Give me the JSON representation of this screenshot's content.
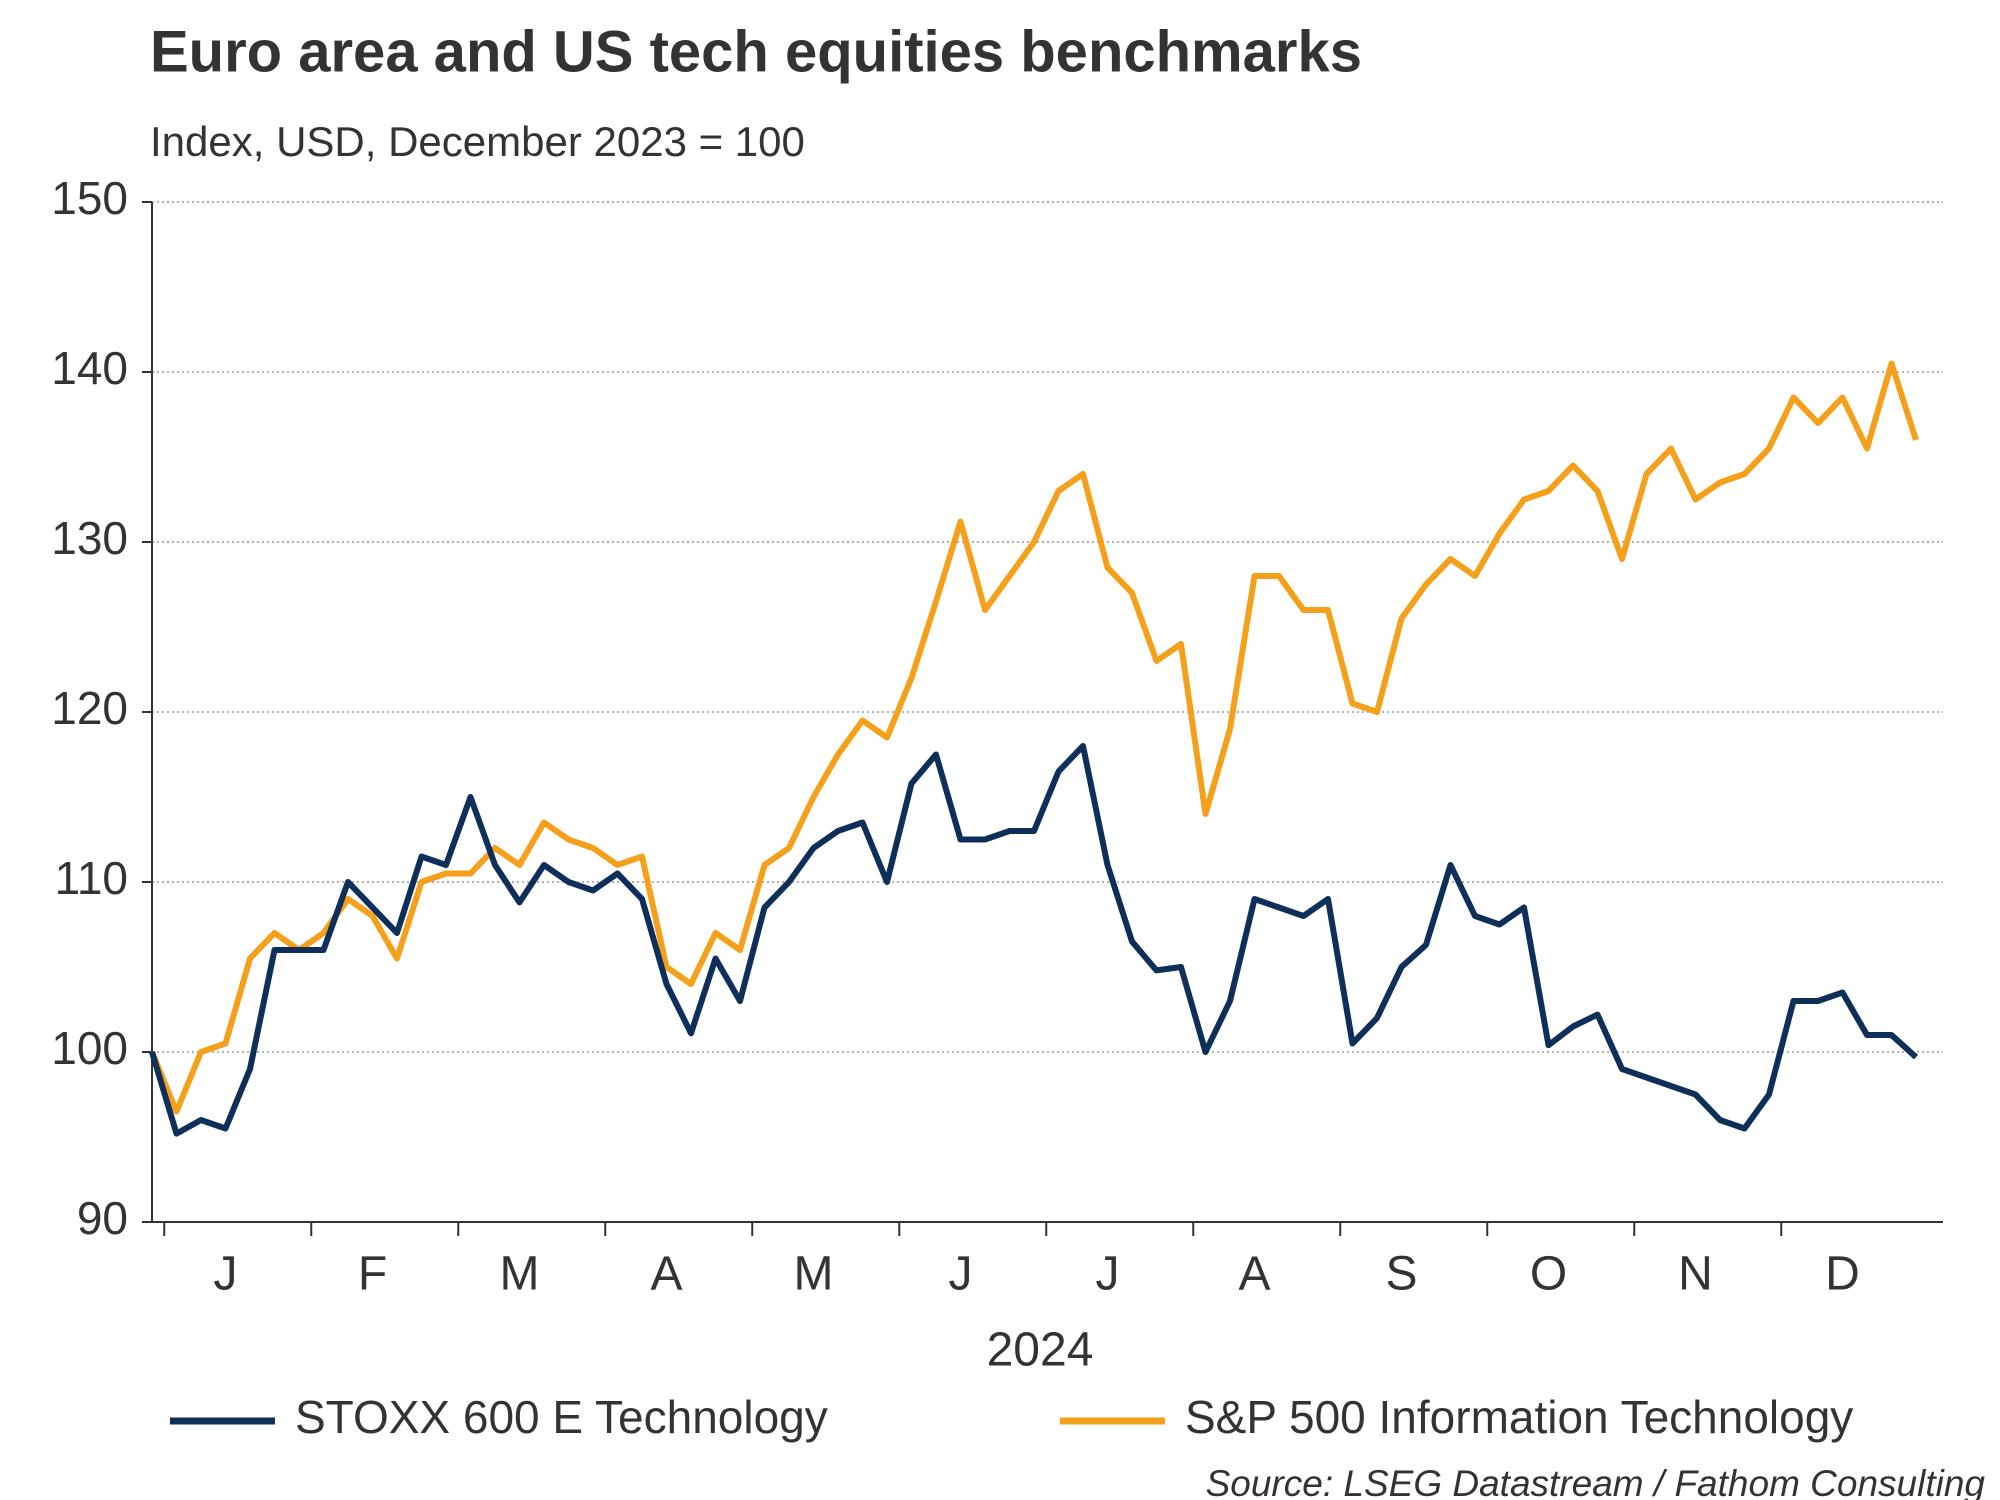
{
  "chart_data": {
    "type": "line",
    "title": "Euro area and US tech equities benchmarks",
    "subtitle": "Index, USD, December 2023 = 100",
    "x_label": "2024",
    "source": "Source: LSEG Datastream / Fathom Consulting",
    "categories": [
      null,
      null,
      null,
      "J",
      null,
      null,
      null,
      null,
      null,
      "F",
      null,
      null,
      null,
      null,
      null,
      "M",
      null,
      null,
      null,
      null,
      null,
      "A",
      null,
      null,
      null,
      null,
      null,
      "M",
      null,
      null,
      null,
      null,
      null,
      "J",
      null,
      null,
      null,
      null,
      null,
      "J",
      null,
      null,
      null,
      null,
      null,
      "A",
      null,
      null,
      null,
      null,
      null,
      "S",
      null,
      null,
      null,
      null,
      null,
      "O",
      null,
      null,
      null,
      null,
      null,
      "N",
      null,
      null,
      null,
      null,
      null,
      "D",
      null,
      null,
      null
    ],
    "series": [
      {
        "name": "STOXX 600 E Technology",
        "color": "#0d2f5a",
        "values": [
          100,
          95.2,
          96,
          95.5,
          99,
          106,
          106,
          106,
          110,
          108.5,
          107,
          111.5,
          111,
          115,
          111,
          108.8,
          111,
          110,
          109.5,
          110.5,
          109,
          104,
          101.1,
          105.5,
          103,
          108.5,
          110,
          112,
          113,
          113.5,
          110,
          115.8,
          117.5,
          112.5,
          112.5,
          113,
          113,
          116.5,
          118,
          111,
          106.5,
          104.8,
          105,
          100,
          103,
          109,
          108.5,
          108,
          109,
          100.5,
          102,
          105,
          106.3,
          111,
          108,
          107.5,
          108.5,
          100.4,
          101.5,
          102.2,
          99,
          98.5,
          98,
          97.5,
          96,
          95.5,
          97.5,
          103,
          103,
          103.5,
          101,
          101,
          99.7
        ]
      },
      {
        "name": "S&P 500 Information Technology",
        "color": "#f5a01a",
        "values": [
          100,
          96.5,
          100,
          100.5,
          105.5,
          107,
          106,
          107,
          109,
          108,
          105.5,
          110,
          110.5,
          110.5,
          112,
          111,
          113.5,
          112.5,
          112,
          111,
          111.5,
          105,
          104,
          107,
          106,
          111,
          112,
          115,
          117.5,
          119.5,
          118.5,
          122,
          126.5,
          131.2,
          126,
          128,
          130,
          133,
          134,
          128.5,
          127,
          123,
          124,
          114,
          119,
          128,
          128,
          126,
          126,
          120.5,
          120,
          125.5,
          127.5,
          129,
          128,
          130.5,
          132.5,
          133,
          134.5,
          133,
          129,
          134,
          135.5,
          132.5,
          133.5,
          134,
          135.5,
          138.5,
          137,
          138.5,
          135.5,
          140.5,
          136
        ]
      }
    ],
    "ylim": [
      90,
      150
    ],
    "yticks": [
      90,
      100,
      110,
      120,
      130,
      140,
      150
    ],
    "grid": true
  }
}
